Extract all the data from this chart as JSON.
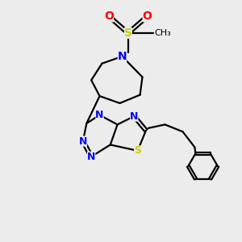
{
  "bg_color": "#ececec",
  "bond_color": "#000000",
  "N_color": "#0000ff",
  "S_color": "#cccc00",
  "O_color": "#ff0000",
  "line_width": 1.6,
  "figsize": [
    3.0,
    3.0
  ],
  "dpi": 100,
  "xlim": [
    0,
    10
  ],
  "ylim": [
    0,
    10
  ]
}
